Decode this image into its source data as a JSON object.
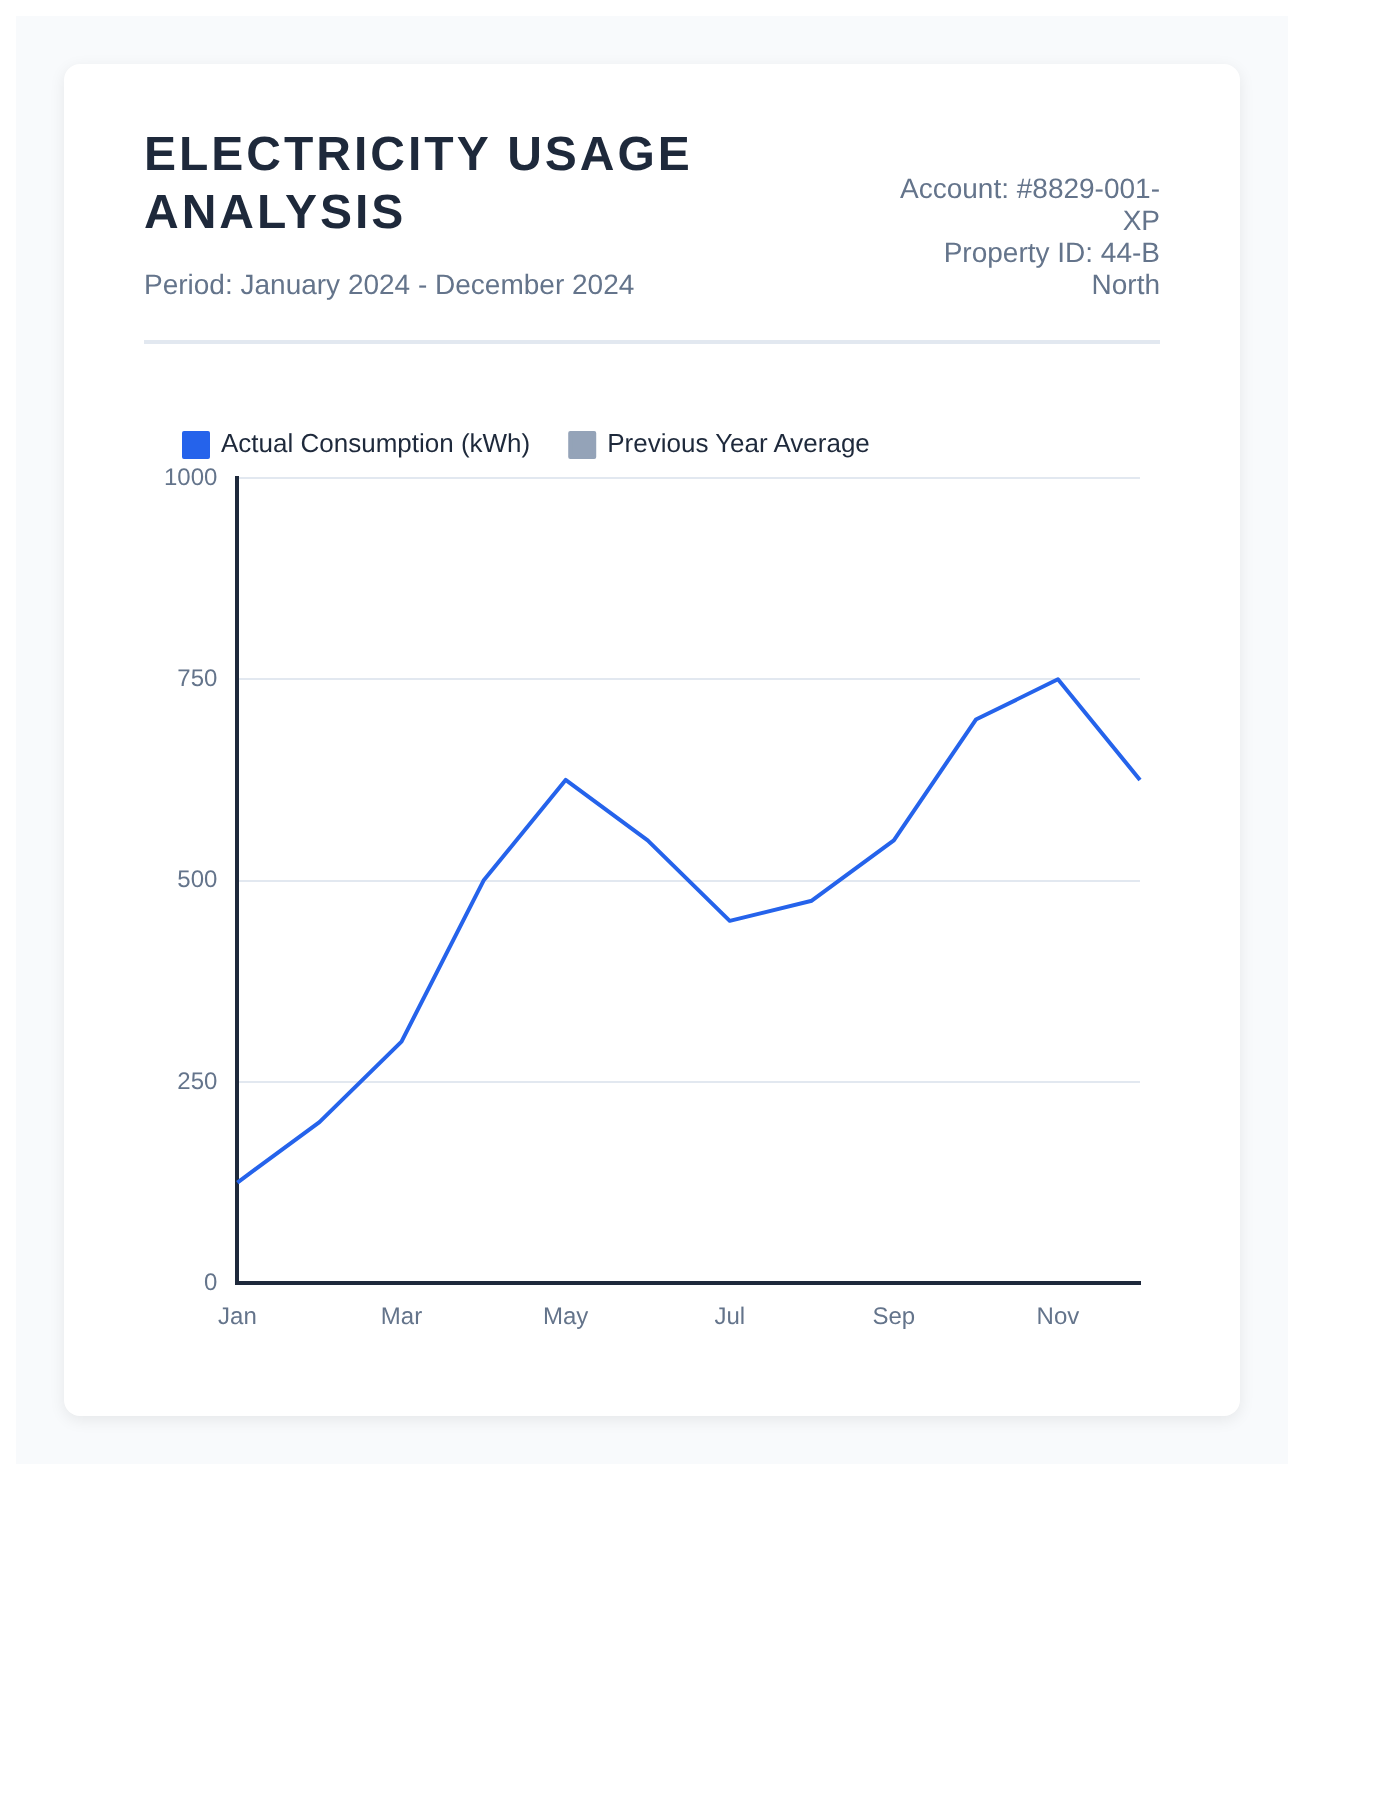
{
  "chart_data": {
    "type": "line",
    "title": "ELECTRICITY USAGE ANALYSIS",
    "subtitle": "Period: January 2024 - December 2024",
    "annotations": [
      "Account: #8829-001-XP",
      "Property ID: 44-B North"
    ],
    "categories": [
      "Jan",
      null,
      "Mar",
      null,
      "May",
      null,
      "Jul",
      null,
      "Sep",
      null,
      "Nov",
      null
    ],
    "series": [
      {
        "name": "Actual Consumption (kWh)",
        "color": "#2563eb",
        "values": [
          125,
          200,
          300,
          500,
          625,
          550,
          450,
          475,
          550,
          700,
          750,
          625
        ]
      },
      {
        "name": "Previous Year Average",
        "color": "#94a3b8",
        "values": [
          null,
          null,
          null,
          null,
          null,
          null,
          null,
          null,
          null,
          null,
          null,
          null
        ]
      }
    ],
    "ylim": [
      0,
      1000
    ],
    "yticks": [
      0,
      250,
      500,
      750,
      1000
    ],
    "grid": "y",
    "legend": "top left",
    "marker": "none",
    "line_style": "solid"
  }
}
